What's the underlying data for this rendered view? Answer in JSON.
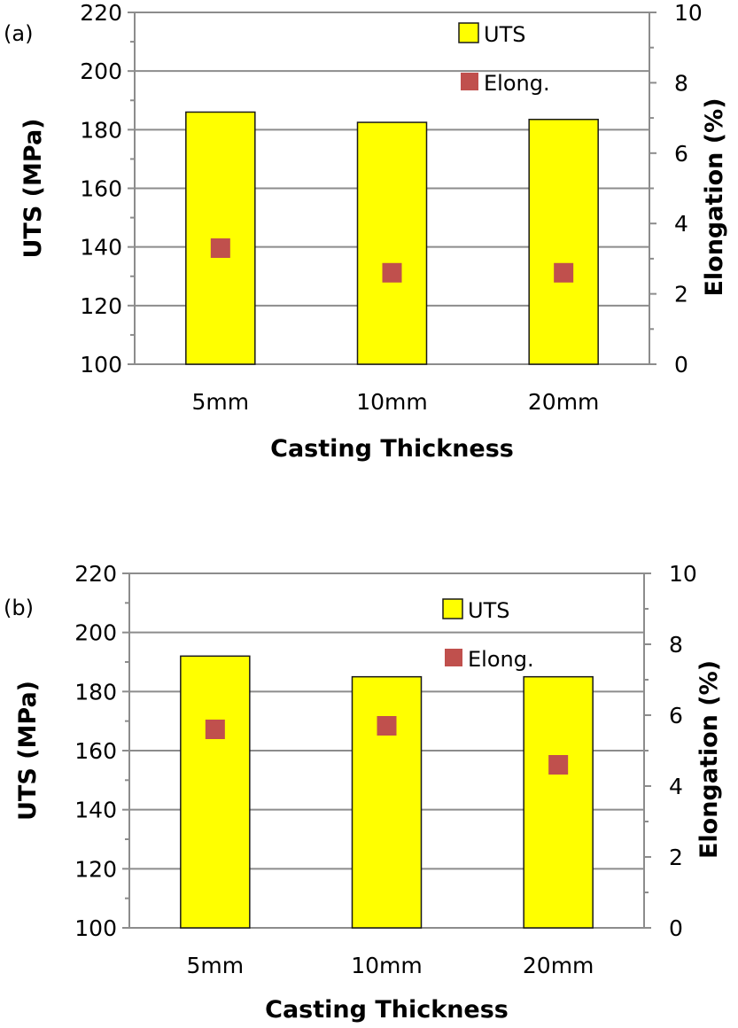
{
  "colors": {
    "bar_fill": "#ffff00",
    "bar_stroke": "#1a1a1a",
    "marker": "#c0504d",
    "gridline": "#8c8c8c",
    "axis": "#8c8c8c"
  },
  "chart_data": [
    {
      "type": "bar",
      "panel_label": "(a)",
      "categories": [
        "5mm",
        "10mm",
        "20mm"
      ],
      "series": [
        {
          "name": "UTS",
          "type": "bar",
          "axis": "left",
          "values": [
            186,
            182.5,
            183.5
          ]
        },
        {
          "name": "Elong.",
          "type": "scatter",
          "axis": "right",
          "values": [
            3.3,
            2.6,
            2.6
          ]
        }
      ],
      "xlabel": "Casting Thickness",
      "ylabel": "UTS (MPa)",
      "y2label": "Elongation (%)",
      "ylim": [
        100,
        220
      ],
      "yticks": [
        "100",
        "120",
        "140",
        "160",
        "180",
        "200",
        "220"
      ],
      "y2lim": [
        0,
        10
      ],
      "y2ticks": [
        "0",
        "2",
        "4",
        "6",
        "8",
        "10"
      ],
      "grid": true,
      "legend": "top-right"
    },
    {
      "type": "bar",
      "panel_label": "(b)",
      "categories": [
        "5mm",
        "10mm",
        "20mm"
      ],
      "series": [
        {
          "name": "UTS",
          "type": "bar",
          "axis": "left",
          "values": [
            192,
            185,
            185
          ]
        },
        {
          "name": "Elong.",
          "type": "scatter",
          "axis": "right",
          "values": [
            5.6,
            5.7,
            4.6
          ]
        }
      ],
      "xlabel": "Casting Thickness",
      "ylabel": "UTS (MPa)",
      "y2label": "Elongation (%)",
      "ylim": [
        100,
        220
      ],
      "yticks": [
        "100",
        "120",
        "140",
        "160",
        "180",
        "200",
        "220"
      ],
      "y2lim": [
        0,
        10
      ],
      "y2ticks": [
        "0",
        "2",
        "4",
        "6",
        "8",
        "10"
      ],
      "grid": true,
      "legend": "top-right"
    }
  ]
}
